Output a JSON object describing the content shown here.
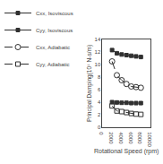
{
  "chart_data": {
    "type": "line",
    "x": [
      2000,
      3000,
      4000,
      5000,
      6000,
      7000,
      8000
    ],
    "series": [
      {
        "name": "Cxx, Isoviscous",
        "color": "#303030",
        "marker": "square",
        "line_style": "solid",
        "values": [
          12.3,
          11.8,
          11.6,
          11.5,
          11.4,
          11.3,
          11.2
        ]
      },
      {
        "name": "Cyy, Isoviscous",
        "color": "#303030",
        "marker": "square",
        "line_style": "solid",
        "values": [
          4.0,
          3.95,
          3.9,
          3.9,
          3.85,
          3.85,
          3.85
        ]
      },
      {
        "name": "Cxx, Adiabatic",
        "color": "#303030",
        "marker": "circle-open",
        "line_style": "dashed",
        "values": [
          10.5,
          8.3,
          7.5,
          6.9,
          6.5,
          6.4,
          6.3
        ]
      },
      {
        "name": "Cyy, Adiabatic",
        "color": "#303030",
        "marker": "square-open",
        "line_style": "dashed",
        "values": [
          3.4,
          2.6,
          2.5,
          2.35,
          2.2,
          2.1,
          2.05
        ]
      }
    ],
    "xlabel": "Rotational Speed (rpm)",
    "ylabel": "Principal Damping(10⁴ N-s/m)",
    "xlim": [
      0,
      10000
    ],
    "ylim": [
      0,
      14
    ],
    "xticks": [
      0,
      2000,
      4000,
      6000,
      8000,
      10000
    ],
    "yticks": [
      0,
      2,
      4,
      6,
      8,
      10,
      12,
      14
    ],
    "grid": false,
    "legend": "top"
  }
}
